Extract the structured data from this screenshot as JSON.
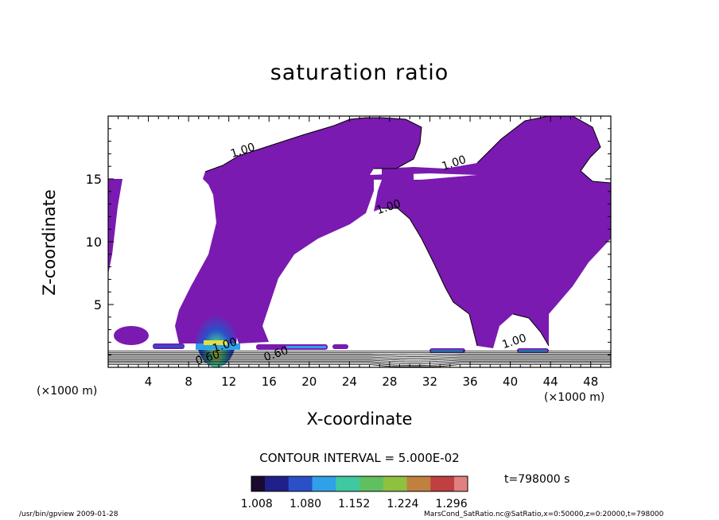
{
  "chart_data": {
    "type": "contour",
    "title": "saturation ratio",
    "xlabel": "X-coordinate",
    "ylabel": "Z-coordinate",
    "x_unit": "(×1000 m)",
    "xlim": [
      0,
      50
    ],
    "ylim": [
      0,
      20
    ],
    "x_ticks": [
      4,
      8,
      12,
      16,
      20,
      24,
      28,
      32,
      36,
      40,
      44,
      48
    ],
    "y_ticks": [
      5,
      10,
      15
    ],
    "contour_interval_label": "CONTOUR INTERVAL = 5.000E-02",
    "time_label": "t=798000 s",
    "colorbar": {
      "tick_labels": [
        "1.008",
        "1.080",
        "1.152",
        "1.224",
        "1.296"
      ],
      "min": 1.0,
      "max": 1.32,
      "colors": [
        "#1a0a2e",
        "#20208a",
        "#2a50c8",
        "#30a0e8",
        "#40c8a0",
        "#60c060",
        "#90c040",
        "#c08040",
        "#c04040",
        "#e08080"
      ]
    },
    "contour_labels": [
      {
        "text": "1.00",
        "x": 13.5,
        "z": 17.0
      },
      {
        "text": "1.00",
        "x": 34.5,
        "z": 16.0
      },
      {
        "text": "1.00",
        "x": 28.0,
        "z": 12.5
      },
      {
        "text": "1.00",
        "x": 40.5,
        "z": 1.8
      },
      {
        "text": "1.00",
        "x": 11.7,
        "z": 1.5
      },
      {
        "text": "0.60",
        "x": 10.0,
        "z": 0.5
      },
      {
        "text": "0.60",
        "x": 16.8,
        "z": 0.8
      }
    ],
    "supersaturated_color": "#7a1ab0"
  },
  "footer": {
    "left": "/usr/bin/gpview   2009-01-28",
    "right": "MarsCond_SatRatio.nc@SatRatio,x=0:50000,z=0:20000,t=798000"
  }
}
